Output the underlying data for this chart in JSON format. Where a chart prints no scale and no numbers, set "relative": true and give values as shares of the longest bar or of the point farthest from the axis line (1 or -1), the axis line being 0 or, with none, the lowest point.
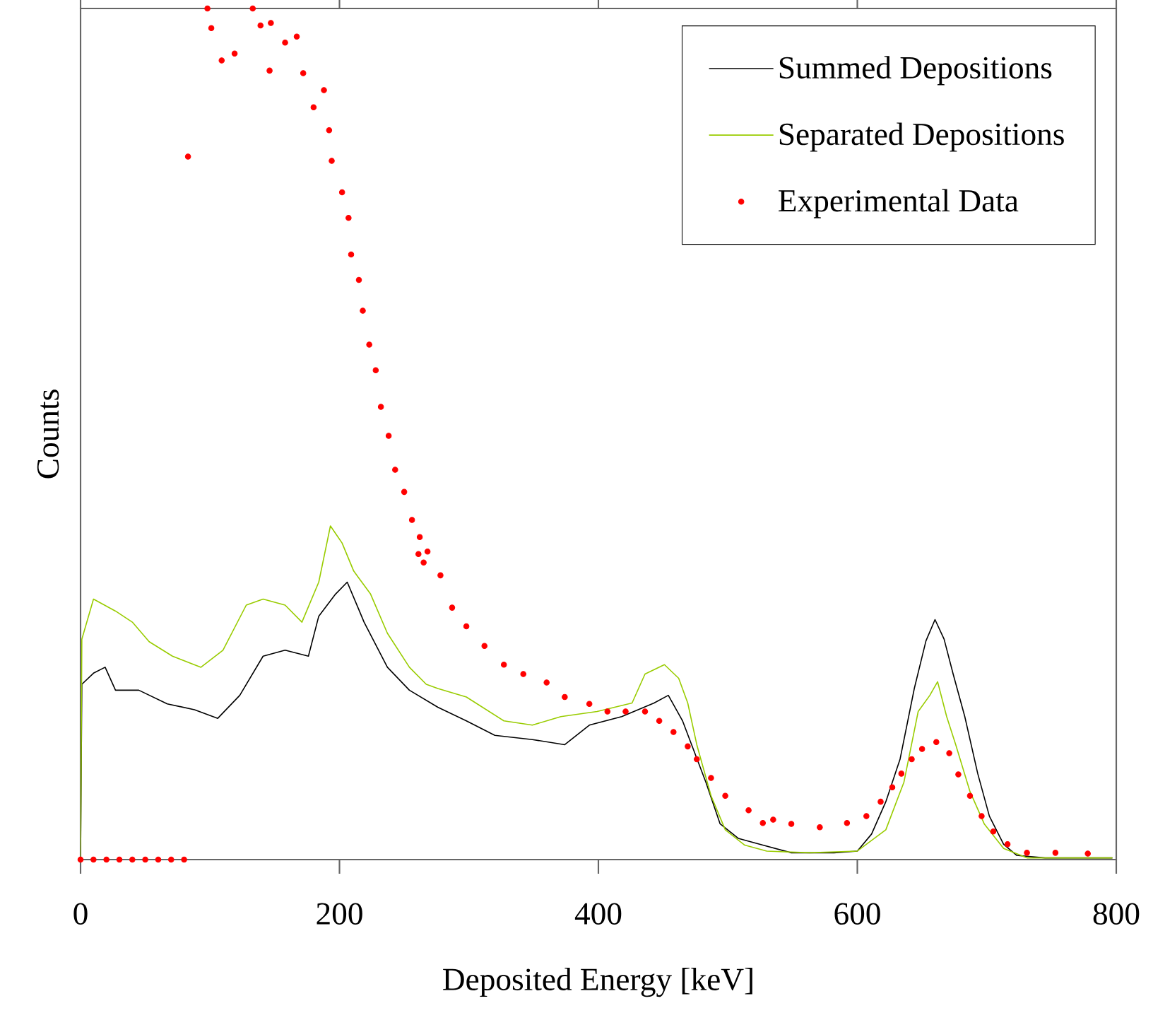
{
  "chart_data": {
    "type": "line",
    "relative": true,
    "xlabel": "Deposited Energy [keV]",
    "ylabel": "Counts",
    "xlim": [
      0,
      800
    ],
    "xticks": [
      0,
      200,
      400,
      600,
      800
    ],
    "tick_labels": "x",
    "legend": "top right",
    "grid": false,
    "series": [
      {
        "name": "Summed Depositions",
        "color": "#000000",
        "marker": "none",
        "x": [
          0,
          1,
          10,
          19,
          27,
          45,
          67,
          88,
          106,
          123,
          141,
          158,
          176,
          184,
          197,
          206,
          219,
          237,
          254,
          276,
          298,
          320,
          349,
          374,
          393,
          418,
          443,
          454,
          465,
          472,
          483,
          494,
          508,
          527,
          549,
          582,
          600,
          611,
          622,
          633,
          644,
          653,
          660,
          667,
          674,
          683,
          693,
          702,
          713,
          723,
          745,
          797
        ],
        "values": [
          0,
          0.206,
          0.219,
          0.226,
          0.199,
          0.199,
          0.183,
          0.176,
          0.166,
          0.193,
          0.239,
          0.246,
          0.239,
          0.286,
          0.312,
          0.326,
          0.279,
          0.226,
          0.199,
          0.179,
          0.163,
          0.146,
          0.141,
          0.135,
          0.158,
          0.168,
          0.184,
          0.193,
          0.163,
          0.135,
          0.091,
          0.042,
          0.025,
          0.017,
          0.008,
          0.008,
          0.01,
          0.03,
          0.068,
          0.118,
          0.201,
          0.257,
          0.282,
          0.259,
          0.218,
          0.168,
          0.101,
          0.051,
          0.018,
          0.005,
          0.002,
          0.002
        ]
      },
      {
        "name": "Separated Depositions",
        "color": "#99cc00",
        "marker": "none",
        "x": [
          0,
          1,
          10,
          27,
          40,
          53,
          71,
          93,
          110,
          128,
          141,
          158,
          171,
          184,
          193,
          202,
          211,
          224,
          237,
          254,
          267,
          276,
          298,
          327,
          349,
          371,
          399,
          426,
          436,
          451,
          462,
          469,
          476,
          487,
          498,
          513,
          530,
          563,
          600,
          622,
          636,
          647,
          656,
          662,
          669,
          676,
          687,
          698,
          713,
          731,
          797
        ],
        "values": [
          0,
          0.259,
          0.306,
          0.292,
          0.279,
          0.256,
          0.239,
          0.226,
          0.246,
          0.299,
          0.306,
          0.299,
          0.279,
          0.326,
          0.392,
          0.372,
          0.339,
          0.312,
          0.266,
          0.226,
          0.206,
          0.201,
          0.191,
          0.163,
          0.158,
          0.168,
          0.174,
          0.184,
          0.218,
          0.229,
          0.213,
          0.184,
          0.135,
          0.075,
          0.035,
          0.017,
          0.01,
          0.008,
          0.01,
          0.035,
          0.091,
          0.174,
          0.193,
          0.209,
          0.168,
          0.135,
          0.08,
          0.042,
          0.013,
          0.002,
          0.002
        ]
      },
      {
        "name": "Experimental Data",
        "type": "scatter",
        "color": "#ff0000",
        "marker": "circle",
        "x": [
          0,
          10,
          20,
          30,
          40,
          50,
          60,
          70,
          80,
          83,
          98,
          101,
          109,
          119,
          133,
          139,
          147,
          146,
          158,
          167,
          172,
          180,
          188,
          192,
          194,
          202,
          207,
          209,
          215,
          218,
          223,
          228,
          232,
          238,
          243,
          250,
          256,
          261,
          265,
          262,
          268,
          278,
          287,
          298,
          312,
          327,
          342,
          360,
          374,
          393,
          407,
          421,
          436,
          447,
          458,
          469,
          476,
          487,
          498,
          516,
          535,
          527,
          549,
          571,
          592,
          607,
          618,
          627,
          634,
          642,
          650,
          661,
          671,
          678,
          687,
          696,
          705,
          716,
          731,
          753,
          778
        ],
        "values": [
          0,
          0,
          0,
          0,
          0,
          0,
          0,
          0,
          0,
          0.826,
          1.0,
          0.977,
          0.939,
          0.947,
          1.0,
          0.98,
          0.983,
          0.927,
          0.96,
          0.967,
          0.924,
          0.884,
          0.904,
          0.857,
          0.821,
          0.784,
          0.754,
          0.711,
          0.681,
          0.645,
          0.605,
          0.575,
          0.532,
          0.498,
          0.458,
          0.432,
          0.399,
          0.359,
          0.349,
          0.379,
          0.362,
          0.334,
          0.296,
          0.274,
          0.251,
          0.229,
          0.218,
          0.208,
          0.191,
          0.183,
          0.174,
          0.174,
          0.174,
          0.163,
          0.15,
          0.133,
          0.118,
          0.096,
          0.075,
          0.058,
          0.047,
          0.043,
          0.042,
          0.038,
          0.043,
          0.051,
          0.068,
          0.085,
          0.101,
          0.118,
          0.13,
          0.138,
          0.125,
          0.1,
          0.075,
          0.051,
          0.033,
          0.018,
          0.008,
          0.008,
          0.007
        ]
      }
    ]
  }
}
